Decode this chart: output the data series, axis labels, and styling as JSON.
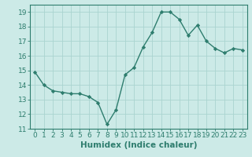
{
  "x": [
    0,
    1,
    2,
    3,
    4,
    5,
    6,
    7,
    8,
    9,
    10,
    11,
    12,
    13,
    14,
    15,
    16,
    17,
    18,
    19,
    20,
    21,
    22,
    23
  ],
  "y": [
    14.9,
    14.0,
    13.6,
    13.5,
    13.4,
    13.4,
    13.2,
    12.8,
    11.3,
    12.3,
    14.7,
    15.2,
    16.6,
    17.6,
    19.0,
    19.0,
    18.5,
    17.4,
    18.1,
    17.0,
    16.5,
    16.2,
    16.5,
    16.4
  ],
  "line_color": "#2e7d6e",
  "marker": "D",
  "marker_size": 2.2,
  "bg_color": "#cceae7",
  "grid_color": "#aad4d0",
  "axis_bg": "#cceae7",
  "xlabel": "Humidex (Indice chaleur)",
  "ylabel": "",
  "xlim": [
    -0.5,
    23.5
  ],
  "ylim": [
    11,
    19.5
  ],
  "yticks": [
    11,
    12,
    13,
    14,
    15,
    16,
    17,
    18,
    19
  ],
  "xticks": [
    0,
    1,
    2,
    3,
    4,
    5,
    6,
    7,
    8,
    9,
    10,
    11,
    12,
    13,
    14,
    15,
    16,
    17,
    18,
    19,
    20,
    21,
    22,
    23
  ],
  "tick_fontsize": 6.5,
  "xlabel_fontsize": 7.5,
  "linewidth": 1.0
}
